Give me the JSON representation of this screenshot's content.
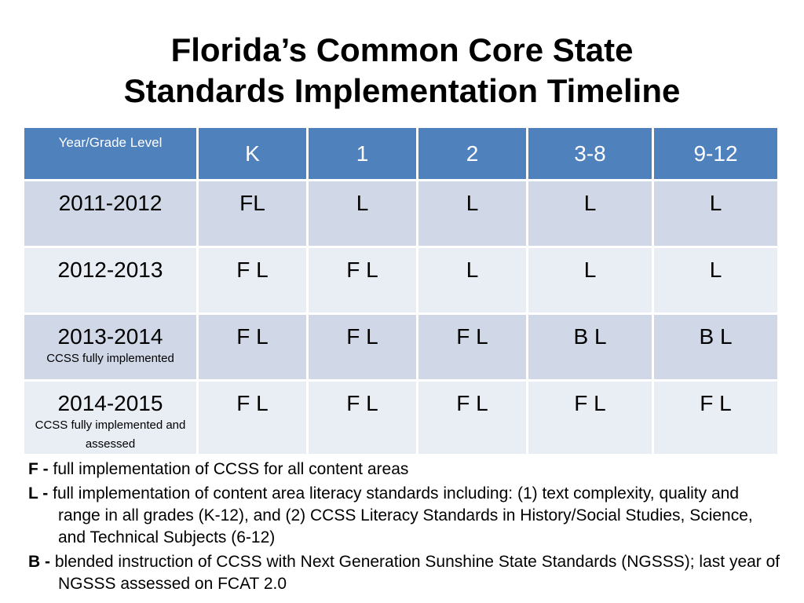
{
  "title": {
    "line1": "Florida’s Common Core State",
    "line2": "Standards Implementation Timeline"
  },
  "table": {
    "corner_label": "Year/Grade Level",
    "columns": [
      "K",
      "1",
      "2",
      "3-8",
      "9-12"
    ],
    "rows": [
      {
        "year": "2011-2012",
        "note": "",
        "cells": [
          "FL",
          "L",
          "L",
          "L",
          "L"
        ]
      },
      {
        "year": "2012-2013",
        "note": "",
        "cells": [
          "F L",
          "F L",
          "L",
          "L",
          "L"
        ]
      },
      {
        "year": "2013-2014",
        "note": "CCSS fully implemented",
        "cells": [
          "F L",
          "F L",
          "F L",
          "B L",
          "B L"
        ]
      },
      {
        "year": "2014-2015",
        "note": "CCSS fully implemented and assessed",
        "cells": [
          "F L",
          "F L",
          "F L",
          "F L",
          "F L"
        ]
      }
    ],
    "colors": {
      "header_bg": "#4f81bd",
      "row_dark": "#d0d8e8",
      "row_light": "#e9edf4"
    }
  },
  "legend": [
    {
      "key": "F -",
      "text": "full implementation of CCSS for all content areas"
    },
    {
      "key": "L -",
      "text": "full implementation of content area literacy standards including:  (1) text complexity, quality and range in all grades (K-12), and (2) CCSS Literacy Standards in History/Social Studies, Science, and Technical Subjects (6-12)"
    },
    {
      "key": "B -",
      "text": "blended instruction of CCSS with Next Generation Sunshine State Standards (NGSSS); last year of NGSSS assessed on FCAT 2.0"
    }
  ]
}
